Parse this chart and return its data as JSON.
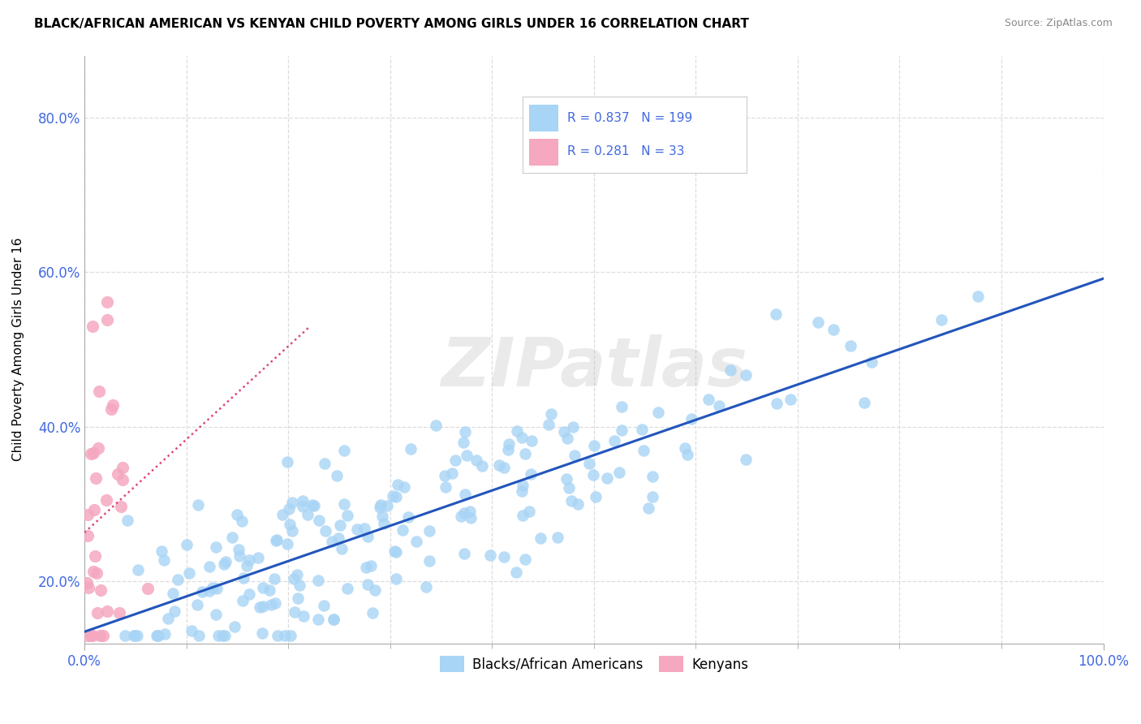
{
  "title": "BLACK/AFRICAN AMERICAN VS KENYAN CHILD POVERTY AMONG GIRLS UNDER 16 CORRELATION CHART",
  "source": "Source: ZipAtlas.com",
  "ylabel": "Child Poverty Among Girls Under 16",
  "xlim": [
    0.0,
    1.0
  ],
  "ylim": [
    0.12,
    0.88
  ],
  "y_ticks": [
    0.2,
    0.4,
    0.6,
    0.8
  ],
  "y_tick_labels": [
    "20.0%",
    "40.0%",
    "60.0%",
    "80.0%"
  ],
  "blue_R": 0.837,
  "blue_N": 199,
  "pink_R": 0.281,
  "pink_N": 33,
  "blue_color": "#A8D4F5",
  "pink_color": "#F5A8C0",
  "blue_line_color": "#2255BB",
  "pink_line_color": "#E0457A",
  "watermark": "ZIPatlas",
  "watermark_color": "#CCCCCC",
  "legend_blue_label": "Blacks/African Americans",
  "legend_pink_label": "Kenyans",
  "background_color": "#FFFFFF",
  "grid_color": "#DDDDDD",
  "tick_color": "#4169E1"
}
